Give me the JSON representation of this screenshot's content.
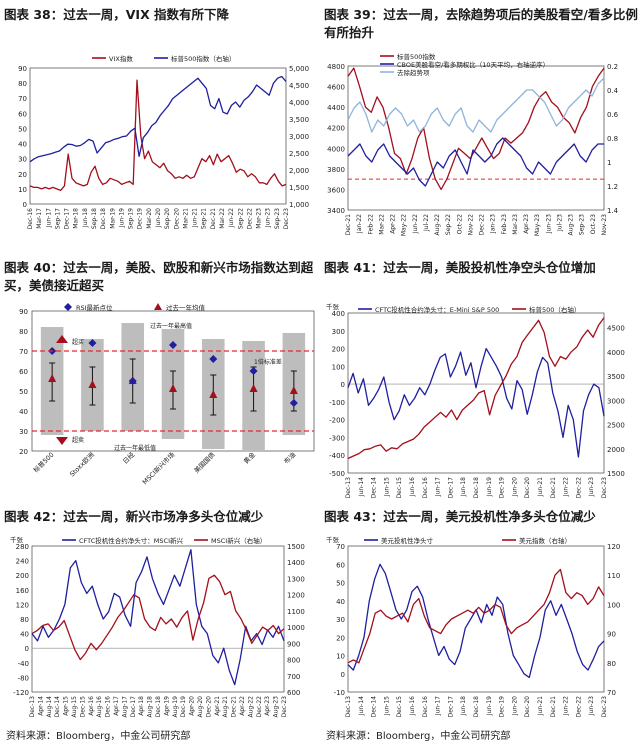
{
  "page": {
    "source_left": "资料来源：Bloomberg，中金公司研究部",
    "source_right": "资料来源：Bloomberg，中金公司研究部"
  },
  "colors": {
    "red": "#a30f1c",
    "blue": "#1f1fa0",
    "lightblue": "#8fb4dc",
    "gray": "#bdbdbd",
    "dash": "#e8272e"
  },
  "chart_data": [
    {
      "id": "fig38",
      "type": "line",
      "title": "图表 38：过去一周，VIX 指数有所下降",
      "legend": [
        "VIX指数",
        "标普500指数（右轴）"
      ],
      "x_ticks": [
        "Dec-16",
        "Mar-17",
        "Jun-17",
        "Sep-17",
        "Dec-17",
        "Mar-18",
        "Jun-18",
        "Sep-18",
        "Dec-18",
        "Mar-19",
        "Jun-19",
        "Sep-19",
        "Dec-19",
        "Mar-20",
        "Jun-20",
        "Sep-20",
        "Dec-20",
        "Mar-21",
        "Jun-21",
        "Sep-21",
        "Dec-21",
        "Mar-22",
        "Jun-22",
        "Sep-22",
        "Dec-22",
        "Mar-23",
        "Jun-23",
        "Sep-23",
        "Dec-23"
      ],
      "y_left": {
        "ticks": [
          0,
          10,
          20,
          30,
          40,
          50,
          60,
          70,
          80,
          90
        ],
        "range": [
          0,
          90
        ]
      },
      "y_right": {
        "ticks": [
          "1,000",
          "1,500",
          "2,000",
          "2,500",
          "3,000",
          "3,500",
          "4,000",
          "4,500",
          "5,000"
        ],
        "range": [
          1000,
          5000
        ]
      },
      "series": [
        {
          "name": "VIX指数",
          "axis": "left",
          "color": "#a30f1c",
          "values": [
            12,
            11,
            11,
            10,
            11,
            10,
            11,
            10,
            9,
            12,
            33,
            17,
            14,
            13,
            12,
            13,
            21,
            25,
            17,
            13,
            14,
            17,
            16,
            15,
            13,
            14,
            15,
            13,
            82,
            45,
            30,
            35,
            28,
            26,
            24,
            27,
            22,
            20,
            17,
            18,
            17,
            19,
            17,
            18,
            24,
            30,
            28,
            32,
            26,
            33,
            28,
            30,
            32,
            27,
            21,
            23,
            22,
            18,
            20,
            18,
            14,
            14,
            13,
            17,
            20,
            15,
            12,
            13
          ]
        },
        {
          "name": "标普500指数（右轴）",
          "axis": "right",
          "color": "#1f1fa0",
          "values": [
            2240,
            2330,
            2390,
            2420,
            2450,
            2480,
            2520,
            2560,
            2670,
            2760,
            2750,
            2700,
            2720,
            2800,
            2900,
            2850,
            2500,
            2650,
            2800,
            2840,
            2900,
            2930,
            2980,
            3000,
            3140,
            3230,
            2400,
            2950,
            3100,
            3300,
            3400,
            3600,
            3750,
            3900,
            4100,
            4200,
            4300,
            4400,
            4500,
            4600,
            4700,
            4550,
            4400,
            3900,
            3800,
            4100,
            3700,
            3650,
            3900,
            4000,
            3850,
            4050,
            4150,
            4300,
            4500,
            4400,
            4300,
            4200,
            4550,
            4700,
            4750,
            4600
          ]
        }
      ]
    },
    {
      "id": "fig39",
      "type": "line",
      "title": "图表 39：过去一周，去除趋势项后的美股看空/看多比例有所抬升",
      "legend": [
        "标普500指数",
        "CBOE美股看空/看多期权比（10天平均，右轴逆序）",
        "去除趋势项"
      ],
      "x_ticks": [
        "Dec-21",
        "Jan-22",
        "Feb-22",
        "Mar-22",
        "Apr-22",
        "May-22",
        "Jun-22",
        "Jul-22",
        "Aug-22",
        "Sep-22",
        "Oct-22",
        "Nov-22",
        "Dec-22",
        "Jan-23",
        "Feb-23",
        "Mar-23",
        "Apr-23",
        "May-23",
        "Jun-23",
        "Jul-23",
        "Aug-23",
        "Sep-23",
        "Oct-23",
        "Nov-23"
      ],
      "y_left": {
        "ticks": [
          3400,
          3600,
          3800,
          4000,
          4200,
          4400,
          4600,
          4800
        ],
        "range": [
          3400,
          4800
        ]
      },
      "y_right": {
        "ticks": [
          0.2,
          0.4,
          0.6,
          0.8,
          1.0,
          1.2,
          1.4
        ],
        "range": [
          0.2,
          1.4
        ],
        "inverted": true
      },
      "reference_line": 3700,
      "series": [
        {
          "name": "标普500指数",
          "axis": "left",
          "color": "#a30f1c",
          "values": [
            4700,
            4780,
            4600,
            4400,
            4350,
            4500,
            4400,
            4200,
            3950,
            3900,
            3750,
            3900,
            4100,
            4200,
            3900,
            3700,
            3600,
            3700,
            3850,
            4000,
            3950,
            3900,
            4000,
            4100,
            4000,
            3900,
            3950,
            4100,
            4050,
            4100,
            4150,
            4250,
            4400,
            4500,
            4550,
            4450,
            4400,
            4300,
            4250,
            4150,
            4300,
            4400,
            4600,
            4700,
            4780
          ]
        },
        {
          "name": "CBOE美股看空/看多期权比（10天平均，右轴逆序）",
          "axis": "right",
          "color": "#1f1fa0",
          "values": [
            0.95,
            0.9,
            0.85,
            0.95,
            1.0,
            0.9,
            0.85,
            0.95,
            1.0,
            1.05,
            1.1,
            1.05,
            1.15,
            1.2,
            1.1,
            1.0,
            1.05,
            0.95,
            0.9,
            1.0,
            1.1,
            0.9,
            0.95,
            1.0,
            0.95,
            0.85,
            0.8,
            0.85,
            0.9,
            0.95,
            1.05,
            1.1,
            1.0,
            1.05,
            1.1,
            1.0,
            0.95,
            0.9,
            0.85,
            0.95,
            1.0,
            0.9,
            0.85,
            0.85
          ]
        },
        {
          "name": "去除趋势项",
          "axis": "right",
          "color": "#8fb4dc",
          "values": [
            0.65,
            0.55,
            0.5,
            0.6,
            0.75,
            0.65,
            0.7,
            0.6,
            0.55,
            0.6,
            0.7,
            0.65,
            0.75,
            0.7,
            0.6,
            0.55,
            0.65,
            0.7,
            0.6,
            0.55,
            0.7,
            0.75,
            0.65,
            0.7,
            0.75,
            0.65,
            0.6,
            0.55,
            0.5,
            0.45,
            0.4,
            0.4,
            0.45,
            0.5,
            0.6,
            0.7,
            0.65,
            0.55,
            0.5,
            0.45,
            0.4,
            0.45,
            0.35,
            0.3
          ]
        }
      ]
    },
    {
      "id": "fig40",
      "type": "bar",
      "title": "图表 40：过去一周，美股、欧股和新兴市场指数达到超买，美债接近超买",
      "legend": [
        "RSI最新点位",
        "过去一年均值",
        "过去一年最高值",
        "过去一年最低值",
        "1倍标准差"
      ],
      "categories": [
        "标普500",
        "Stoxx欧洲",
        "日经",
        "MSCI新兴市场",
        "美国国债",
        "黄金",
        "布油"
      ],
      "ylim": [
        20,
        90
      ],
      "y_ticks": [
        20,
        30,
        40,
        50,
        60,
        70,
        80,
        90
      ],
      "overbought": 70,
      "oversold": 30,
      "overbought_label": "超买",
      "oversold_label": "超卖",
      "range_high": [
        82,
        76,
        84,
        81,
        76,
        75,
        79
      ],
      "range_low": [
        28,
        30,
        30,
        26,
        21,
        20,
        28
      ],
      "latest": [
        70,
        74,
        55,
        73,
        66,
        60,
        44
      ],
      "mean": [
        56,
        53,
        55,
        51,
        48,
        51,
        50
      ],
      "sd_high": [
        64,
        62,
        66,
        60,
        58,
        62,
        60
      ],
      "sd_low": [
        45,
        43,
        44,
        41,
        38,
        40,
        40
      ]
    },
    {
      "id": "fig41",
      "type": "line",
      "title": "图表 41：过去一周，美股投机性净空头仓位增加",
      "unit": "千张",
      "legend": [
        "CFTC投机性合约净头寸：E-Mini S&P 500",
        "标普500（右轴）"
      ],
      "x_ticks": [
        "Dec-13",
        "Jun-14",
        "Dec-14",
        "Jun-15",
        "Dec-15",
        "Jun-16",
        "Dec-16",
        "Jun-17",
        "Dec-17",
        "Jun-18",
        "Dec-18",
        "Jun-19",
        "Dec-19",
        "Jun-20",
        "Dec-20",
        "Jun-21",
        "Dec-21",
        "Jun-22",
        "Dec-22",
        "Jun-23",
        "Dec-23"
      ],
      "y_left": {
        "ticks": [
          -500,
          -400,
          -300,
          -200,
          -100,
          0,
          100,
          200,
          300,
          400
        ],
        "range": [
          -500,
          400
        ]
      },
      "y_right": {
        "ticks": [
          1500,
          2000,
          2500,
          3000,
          3500,
          4000,
          4500
        ],
        "range": [
          1500,
          4800
        ]
      },
      "series": [
        {
          "name": "CFTC投机性合约净头寸：E-Mini S&P 500",
          "axis": "left",
          "color": "#1f1fa0",
          "values": [
            -20,
            60,
            -50,
            30,
            -120,
            -80,
            -30,
            40,
            -100,
            -200,
            -150,
            -60,
            -120,
            -80,
            -20,
            -60,
            0,
            80,
            150,
            170,
            40,
            100,
            180,
            50,
            120,
            -20,
            100,
            200,
            150,
            100,
            40,
            -80,
            -140,
            20,
            -30,
            -170,
            -60,
            70,
            150,
            120,
            -50,
            -150,
            -300,
            -120,
            -200,
            -410,
            -150,
            -60,
            0,
            -20,
            -180
          ]
        },
        {
          "name": "标普500（右轴）",
          "axis": "right",
          "color": "#a30f1c",
          "values": [
            1800,
            1850,
            1900,
            1980,
            2000,
            2050,
            2080,
            1950,
            2020,
            2000,
            2100,
            2150,
            2200,
            2300,
            2450,
            2550,
            2650,
            2750,
            2650,
            2800,
            2600,
            2800,
            2900,
            3000,
            3150,
            3200,
            2700,
            3100,
            3300,
            3500,
            3750,
            3900,
            4200,
            4350,
            4500,
            4650,
            4400,
            3900,
            3700,
            3900,
            3850,
            4000,
            4100,
            4300,
            4450,
            4300,
            4550,
            4700
          ]
        }
      ]
    },
    {
      "id": "fig42",
      "type": "line",
      "title": "图表 42：过去一周，新兴市场净多头仓位减少",
      "unit": "千张",
      "legend": [
        "CFTC投机性合约净头寸：MSCI新兴",
        "MSCI新兴（右轴）"
      ],
      "x_ticks": [
        "Dec-13",
        "Apr-14",
        "Aug-14",
        "Dec-14",
        "Apr-15",
        "Aug-15",
        "Dec-15",
        "Apr-16",
        "Aug-16",
        "Dec-16",
        "Apr-17",
        "Aug-17",
        "Dec-17",
        "Apr-18",
        "Aug-18",
        "Dec-18",
        "Apr-19",
        "Aug-19",
        "Dec-19",
        "Apr-20",
        "Aug-20",
        "Dec-20",
        "Apr-21",
        "Aug-21",
        "Dec-21",
        "Apr-22",
        "Aug-22",
        "Dec-22",
        "Apr-23",
        "Aug-23",
        "Dec-23"
      ],
      "y_left": {
        "ticks": [
          -120,
          -80,
          -40,
          0,
          40,
          80,
          120,
          160,
          200,
          240,
          280
        ],
        "range": [
          -120,
          280
        ]
      },
      "y_right": {
        "ticks": [
          600,
          700,
          800,
          900,
          1000,
          1100,
          1200,
          1300,
          1400,
          1500
        ],
        "range": [
          600,
          1500
        ]
      },
      "series": [
        {
          "name": "CFTC投机性合约净头寸：MSCI新兴",
          "axis": "left",
          "color": "#1f1fa0",
          "values": [
            40,
            20,
            60,
            30,
            50,
            80,
            120,
            220,
            240,
            180,
            150,
            170,
            120,
            80,
            100,
            150,
            140,
            90,
            60,
            180,
            210,
            250,
            190,
            150,
            120,
            160,
            200,
            170,
            220,
            270,
            120,
            60,
            40,
            -20,
            -40,
            0,
            -60,
            -100,
            -30,
            60,
            20,
            40,
            10,
            50,
            30,
            60,
            20
          ]
        },
        {
          "name": "MSCI新兴（右轴）",
          "axis": "right",
          "color": "#a30f1c",
          "values": [
            960,
            980,
            1010,
            1020,
            980,
            1000,
            1040,
            950,
            860,
            800,
            840,
            900,
            860,
            900,
            950,
            1000,
            1060,
            1100,
            1150,
            1200,
            1180,
            1050,
            1000,
            980,
            1060,
            1020,
            1050,
            1000,
            1060,
            1100,
            920,
            1050,
            1150,
            1300,
            1320,
            1280,
            1200,
            1220,
            1100,
            1050,
            980,
            900,
            950,
            1000,
            980,
            1010,
            960,
            990
          ]
        }
      ]
    },
    {
      "id": "fig43",
      "type": "line",
      "title": "图表 43：过去一周，美元投机性净多头仓位减少",
      "unit": "千张",
      "legend": [
        "美元投机性净头寸",
        "美元指数（右轴）"
      ],
      "x_ticks": [
        "Dec-13",
        "Jun-14",
        "Dec-14",
        "Jun-15",
        "Dec-15",
        "Jun-16",
        "Dec-16",
        "Jun-17",
        "Dec-17",
        "Jun-18",
        "Dec-18",
        "Jun-19",
        "Dec-19",
        "Jun-20",
        "Dec-20",
        "Jun-21",
        "Dec-21",
        "Jun-22",
        "Dec-22",
        "Jun-23",
        "Dec-23"
      ],
      "y_left": {
        "ticks": [
          -10,
          0,
          10,
          20,
          30,
          40,
          50,
          60,
          70
        ],
        "range": [
          -10,
          70
        ]
      },
      "y_right": {
        "ticks": [
          70,
          80,
          90,
          100,
          110,
          120
        ],
        "range": [
          70,
          120
        ]
      },
      "series": [
        {
          "name": "美元投机性净头寸",
          "axis": "left",
          "color": "#1f1fa0",
          "values": [
            5,
            2,
            10,
            20,
            40,
            52,
            60,
            55,
            45,
            35,
            30,
            35,
            45,
            48,
            42,
            30,
            20,
            10,
            15,
            8,
            5,
            12,
            25,
            30,
            35,
            28,
            38,
            32,
            42,
            38,
            22,
            10,
            5,
            0,
            -2,
            10,
            20,
            35,
            40,
            32,
            38,
            30,
            22,
            12,
            5,
            2,
            8,
            15,
            18
          ]
        },
        {
          "name": "美元指数（右轴）",
          "axis": "right",
          "color": "#a30f1c",
          "values": [
            80,
            81,
            80,
            85,
            90,
            97,
            98,
            96,
            95,
            96,
            97,
            94,
            100,
            102,
            96,
            92,
            91,
            90,
            93,
            95,
            96,
            97,
            98,
            97,
            99,
            97,
            98,
            100,
            99,
            93,
            90,
            92,
            93,
            94,
            96,
            98,
            100,
            104,
            110,
            112,
            104,
            102,
            104,
            103,
            100,
            102,
            106,
            103
          ]
        }
      ]
    }
  ]
}
